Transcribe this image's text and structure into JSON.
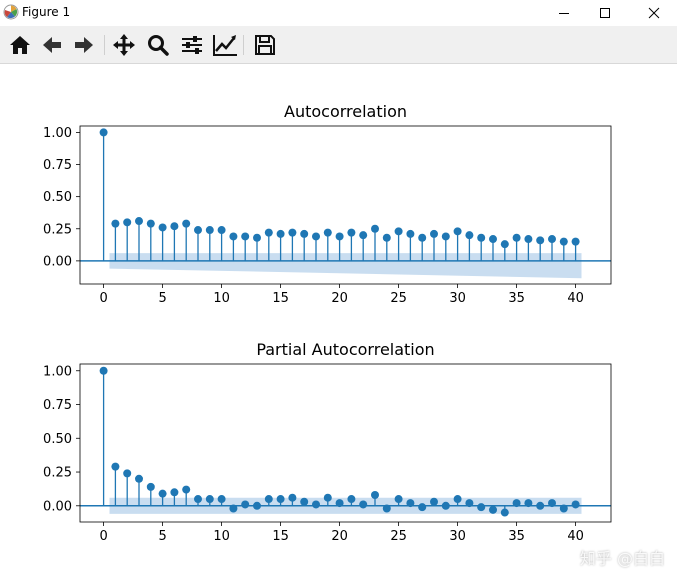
{
  "window": {
    "title": "Figure 1",
    "controls": {
      "minimize": "minimize",
      "maximize": "maximize",
      "close": "close"
    }
  },
  "toolbar": {
    "buttons": [
      {
        "name": "home",
        "icon": "home-icon"
      },
      {
        "name": "back",
        "icon": "arrow-left-icon"
      },
      {
        "name": "forward",
        "icon": "arrow-right-icon"
      },
      {
        "name": "pan",
        "icon": "move-icon"
      },
      {
        "name": "zoom",
        "icon": "zoom-icon"
      },
      {
        "name": "configure-subplots",
        "icon": "sliders-icon"
      },
      {
        "name": "edit-axis",
        "icon": "chart-edit-icon"
      },
      {
        "name": "save",
        "icon": "save-icon"
      }
    ]
  },
  "colors": {
    "series": "#1f77b4",
    "confidence": "#c6dbef"
  },
  "chart_data": [
    {
      "type": "stem",
      "title": "Autocorrelation",
      "xlim": [
        -2,
        43
      ],
      "ylim": [
        -0.18,
        1.05
      ],
      "xticks": [
        0,
        5,
        10,
        15,
        20,
        25,
        30,
        35,
        40
      ],
      "yticks": [
        1.0,
        0.75,
        0.5,
        0.25,
        0.0
      ],
      "ytick_labels": [
        "1.00",
        "0.75",
        "0.50",
        "0.25",
        "0.00"
      ],
      "x": [
        0,
        1,
        2,
        3,
        4,
        5,
        6,
        7,
        8,
        9,
        10,
        11,
        12,
        13,
        14,
        15,
        16,
        17,
        18,
        19,
        20,
        21,
        22,
        23,
        24,
        25,
        26,
        27,
        28,
        29,
        30,
        31,
        32,
        33,
        34,
        35,
        36,
        37,
        38,
        39,
        40
      ],
      "values": [
        1.0,
        0.29,
        0.3,
        0.31,
        0.29,
        0.26,
        0.27,
        0.29,
        0.24,
        0.24,
        0.24,
        0.19,
        0.19,
        0.18,
        0.22,
        0.21,
        0.22,
        0.21,
        0.19,
        0.22,
        0.19,
        0.22,
        0.2,
        0.25,
        0.18,
        0.23,
        0.21,
        0.18,
        0.21,
        0.19,
        0.23,
        0.2,
        0.18,
        0.17,
        0.13,
        0.18,
        0.17,
        0.16,
        0.17,
        0.15,
        0.15
      ],
      "confidence_band": {
        "x_start": 0.5,
        "x_end": 40.5,
        "upper_start": 0.06,
        "upper_end": 0.06,
        "lower_start": -0.06,
        "lower_end": -0.135
      }
    },
    {
      "type": "stem",
      "title": "Partial Autocorrelation",
      "xlim": [
        -2,
        43
      ],
      "ylim": [
        -0.12,
        1.05
      ],
      "xticks": [
        0,
        5,
        10,
        15,
        20,
        25,
        30,
        35,
        40
      ],
      "yticks": [
        1.0,
        0.75,
        0.5,
        0.25,
        0.0
      ],
      "ytick_labels": [
        "1.00",
        "0.75",
        "0.50",
        "0.25",
        "0.00"
      ],
      "x": [
        0,
        1,
        2,
        3,
        4,
        5,
        6,
        7,
        8,
        9,
        10,
        11,
        12,
        13,
        14,
        15,
        16,
        17,
        18,
        19,
        20,
        21,
        22,
        23,
        24,
        25,
        26,
        27,
        28,
        29,
        30,
        31,
        32,
        33,
        34,
        35,
        36,
        37,
        38,
        39,
        40
      ],
      "values": [
        1.0,
        0.29,
        0.24,
        0.2,
        0.14,
        0.09,
        0.1,
        0.12,
        0.05,
        0.05,
        0.05,
        -0.02,
        0.01,
        0.0,
        0.05,
        0.05,
        0.06,
        0.03,
        0.01,
        0.06,
        0.02,
        0.05,
        0.01,
        0.08,
        -0.02,
        0.05,
        0.02,
        -0.01,
        0.03,
        0.0,
        0.05,
        0.02,
        -0.01,
        -0.03,
        -0.05,
        0.02,
        0.02,
        0.0,
        0.02,
        -0.02,
        0.01
      ],
      "confidence_band": {
        "x_start": 0.5,
        "x_end": 40.5,
        "upper_start": 0.06,
        "upper_end": 0.06,
        "lower_start": -0.06,
        "lower_end": -0.06
      }
    }
  ],
  "watermark": "知乎 @白白"
}
